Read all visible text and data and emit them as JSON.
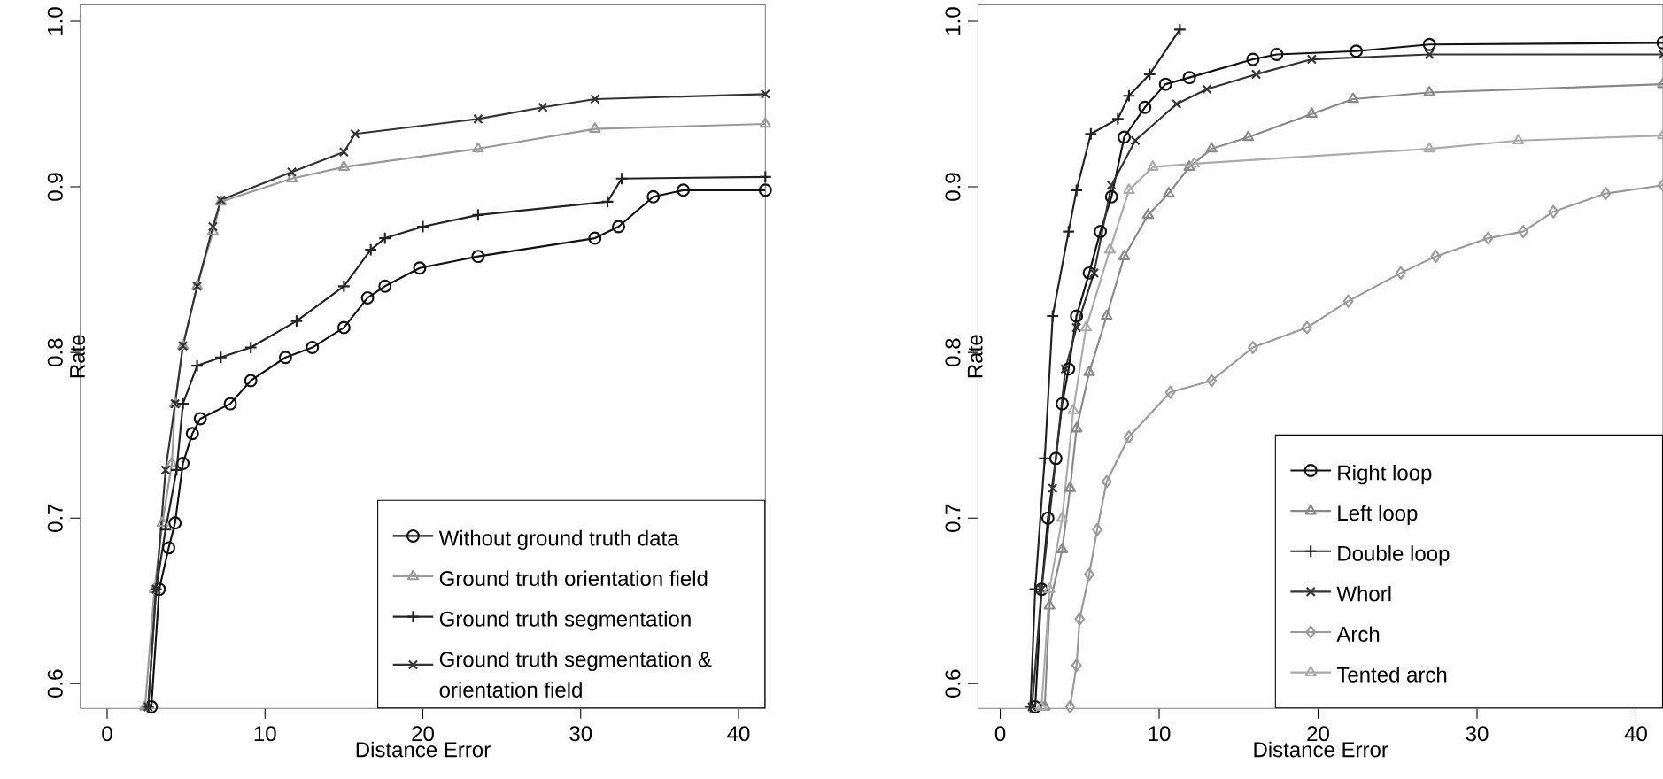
{
  "chart_data": [
    {
      "type": "line",
      "xlabel": "Distance Error",
      "ylabel": "Rate",
      "xlim": [
        -1.7,
        41.7
      ],
      "ylim": [
        0.585,
        1.01
      ],
      "xticks": [
        0,
        10,
        20,
        30,
        40
      ],
      "yticks": [
        0.6,
        0.7,
        0.8,
        0.9,
        {
          "value": 1.0,
          "label": "1.0"
        }
      ],
      "legend": "bottom right",
      "grid": false,
      "series": [
        {
          "name": "Without ground truth data",
          "color": "#111111",
          "marker": "circle",
          "x": [
            2.8,
            3.3,
            3.9,
            4.3,
            4.8,
            5.4,
            5.9,
            7.8,
            9.1,
            11.3,
            13,
            15,
            16.5,
            17.6,
            19.8,
            23.5,
            30.9,
            32.4,
            34.6,
            36.5,
            41.7
          ],
          "values": [
            0.586,
            0.657,
            0.682,
            0.697,
            0.733,
            0.751,
            0.76,
            0.769,
            0.783,
            0.797,
            0.803,
            0.815,
            0.833,
            0.84,
            0.851,
            0.858,
            0.869,
            0.876,
            0.894,
            0.898,
            0.898
          ]
        },
        {
          "name": "Ground truth orientation field",
          "color": "#999999",
          "marker": "triangle",
          "x": [
            2.4,
            3,
            3.5,
            4.1,
            4.3,
            4.8,
            5.7,
            6.7,
            7.2,
            11.7,
            15,
            23.5,
            30.9,
            41.7
          ],
          "values": [
            0.586,
            0.657,
            0.697,
            0.733,
            0.769,
            0.804,
            0.84,
            0.873,
            0.891,
            0.905,
            0.912,
            0.923,
            0.935,
            0.938
          ]
        },
        {
          "name": "Ground truth segmentation",
          "color": "#222222",
          "marker": "plus",
          "x": [
            2.6,
            3.1,
            3.7,
            4.4,
            4.8,
            5.7,
            7.2,
            9.1,
            12,
            15,
            16.7,
            17.6,
            20,
            23.5,
            31.7,
            32.6,
            41.7
          ],
          "values": [
            0.586,
            0.657,
            0.693,
            0.729,
            0.769,
            0.792,
            0.797,
            0.803,
            0.819,
            0.84,
            0.862,
            0.869,
            0.876,
            0.883,
            0.891,
            0.905,
            0.906
          ]
        },
        {
          "name": "Ground truth segmentation & orientation field",
          "color": "#333333",
          "marker": "cross",
          "x": [
            2.6,
            3.1,
            3.7,
            4.3,
            4.8,
            5.7,
            6.7,
            7.2,
            11.7,
            15,
            15.7,
            23.5,
            27.6,
            30.9,
            41.7
          ],
          "values": [
            0.586,
            0.657,
            0.729,
            0.769,
            0.804,
            0.84,
            0.876,
            0.892,
            0.909,
            0.921,
            0.932,
            0.941,
            0.948,
            0.953,
            0.956
          ]
        }
      ]
    },
    {
      "type": "line",
      "xlabel": "Distance Error",
      "ylabel": "Rate",
      "xlim": [
        -1.4,
        41.7
      ],
      "ylim": [
        0.585,
        1.01
      ],
      "xticks": [
        0,
        10,
        20,
        30,
        40
      ],
      "yticks": [
        0.6,
        0.7,
        0.8,
        0.9,
        {
          "value": 1.0,
          "label": "1.0"
        }
      ],
      "legend": "bottom right",
      "grid": false,
      "series": [
        {
          "name": "Right loop",
          "color": "#111111",
          "marker": "circle",
          "x": [
            2.2,
            2.6,
            3,
            3.5,
            3.9,
            4.3,
            4.8,
            5.6,
            6.3,
            7,
            7.8,
            9.1,
            10.4,
            11.9,
            15.9,
            17.4,
            22.4,
            27,
            41.7
          ],
          "values": [
            0.586,
            0.657,
            0.7,
            0.736,
            0.769,
            0.79,
            0.822,
            0.848,
            0.873,
            0.894,
            0.93,
            0.948,
            0.962,
            0.966,
            0.977,
            0.98,
            0.982,
            0.986,
            0.987
          ]
        },
        {
          "name": "Left loop",
          "color": "#888888",
          "marker": "triangle",
          "x": [
            2.8,
            3.1,
            3.9,
            4.4,
            4.8,
            5.6,
            6.7,
            7.8,
            9.3,
            10.6,
            11.9,
            13.3,
            15.6,
            19.6,
            22.2,
            27,
            41.7
          ],
          "values": [
            0.586,
            0.647,
            0.681,
            0.718,
            0.754,
            0.788,
            0.822,
            0.858,
            0.883,
            0.896,
            0.912,
            0.923,
            0.93,
            0.944,
            0.953,
            0.957,
            0.962
          ]
        },
        {
          "name": "Double loop",
          "color": "#222222",
          "marker": "plus",
          "x": [
            1.9,
            2.2,
            2.8,
            3.3,
            4.3,
            4.8,
            5.7,
            7.4,
            8.1,
            9.4,
            11.3
          ],
          "values": [
            0.586,
            0.657,
            0.736,
            0.822,
            0.873,
            0.898,
            0.932,
            0.941,
            0.955,
            0.968,
            0.995
          ]
        },
        {
          "name": "Whorl",
          "color": "#333333",
          "marker": "cross",
          "x": [
            2,
            2.6,
            3.3,
            4.1,
            4.8,
            5.9,
            7,
            8.5,
            11.1,
            13,
            16.1,
            19.6,
            27,
            41.7
          ],
          "values": [
            0.586,
            0.657,
            0.718,
            0.79,
            0.815,
            0.848,
            0.901,
            0.928,
            0.95,
            0.959,
            0.968,
            0.977,
            0.98,
            0.98
          ]
        },
        {
          "name": "Arch",
          "color": "#999999",
          "marker": "diamond",
          "x": [
            4.4,
            4.8,
            5,
            5.6,
            6.1,
            6.7,
            8.1,
            10.7,
            13.3,
            15.9,
            19.3,
            21.9,
            25.2,
            27.4,
            30.7,
            32.9,
            34.8,
            38.1,
            41.7
          ],
          "values": [
            0.586,
            0.611,
            0.639,
            0.666,
            0.693,
            0.722,
            0.749,
            0.776,
            0.783,
            0.803,
            0.815,
            0.831,
            0.848,
            0.858,
            0.869,
            0.873,
            0.885,
            0.896,
            0.901
          ]
        },
        {
          "name": "Tented arch",
          "color": "#aaaaaa",
          "marker": "triangle-down",
          "x": [
            2.6,
            3.1,
            3.9,
            4.6,
            5.4,
            6.9,
            8.1,
            9.6,
            12.2,
            27,
            32.6,
            41.7
          ],
          "values": [
            0.586,
            0.657,
            0.7,
            0.765,
            0.815,
            0.862,
            0.898,
            0.912,
            0.914,
            0.923,
            0.928,
            0.931
          ]
        }
      ]
    }
  ]
}
